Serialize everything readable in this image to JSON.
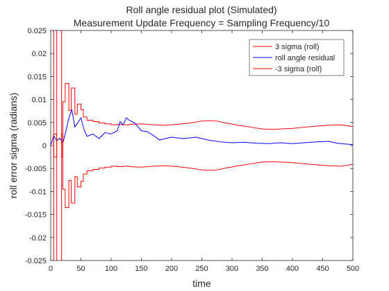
{
  "chart_data": {
    "type": "line",
    "title_lines": [
      "Roll angle residual plot (Simulated)",
      "Measurement Update Frequency = Sampling Frequency/10"
    ],
    "xlabel": "time",
    "ylabel": "roll error sigma (radians)",
    "xlim": [
      0,
      500
    ],
    "ylim": [
      -0.025,
      0.025
    ],
    "x_ticks": [
      0,
      50,
      100,
      150,
      200,
      250,
      300,
      350,
      400,
      450,
      500
    ],
    "x_tick_labels": [
      "0",
      "50",
      "100",
      "150",
      "200",
      "250",
      "300",
      "350",
      "400",
      "450",
      "500"
    ],
    "y_ticks": [
      -0.025,
      -0.02,
      -0.015,
      -0.01,
      -0.005,
      0,
      0.005,
      0.01,
      0.015,
      0.02,
      0.025
    ],
    "y_tick_labels": [
      "-0.025",
      "-0.02",
      "-0.015",
      "-0.01",
      "-0.005",
      "0",
      "0.005",
      "0.01",
      "0.015",
      "0.02",
      "0.025"
    ],
    "grid": false,
    "legend_position": "top-right",
    "series": [
      {
        "name": "3 sigma (roll)",
        "color": "#ff0000",
        "x": [
          0,
          1,
          2,
          5,
          5,
          10,
          10,
          11,
          12,
          18,
          18,
          20,
          20,
          24,
          24,
          30,
          30,
          34,
          34,
          40,
          40,
          44,
          44,
          50,
          50,
          54,
          54,
          60,
          60,
          70,
          70,
          80,
          80,
          90,
          90,
          100,
          100,
          110,
          110,
          120,
          120,
          130,
          130,
          150,
          170,
          190,
          210,
          230,
          250,
          260,
          275,
          290,
          310,
          330,
          350,
          370,
          380,
          400,
          420,
          440,
          460,
          480,
          490,
          500
        ],
        "y": [
          0.0262,
          0.0262,
          0.0262,
          0.0262,
          -0.0025,
          -0.0025,
          0.0262,
          0.0262,
          0.0262,
          0.0262,
          -0.0025,
          -0.0025,
          0.0095,
          0.0095,
          0.0135,
          0.0135,
          0.0076,
          0.0076,
          0.0125,
          0.0125,
          0.0068,
          0.0068,
          0.009,
          0.009,
          0.0078,
          0.0078,
          0.0062,
          0.0062,
          0.0055,
          0.0055,
          0.0052,
          0.0052,
          0.0049,
          0.0049,
          0.0047,
          0.0047,
          0.0045,
          0.0045,
          0.0046,
          0.0046,
          0.0045,
          0.0045,
          0.0046,
          0.0047,
          0.0045,
          0.0044,
          0.0046,
          0.0049,
          0.0053,
          0.0054,
          0.0053,
          0.0049,
          0.0044,
          0.004,
          0.0036,
          0.0035,
          0.0036,
          0.0037,
          0.004,
          0.0042,
          0.0044,
          0.0045,
          0.0043,
          0.0041
        ]
      },
      {
        "name": "roll angle residual",
        "color": "#0000ff",
        "x": [
          0,
          5,
          10,
          15,
          20,
          25,
          30,
          35,
          40,
          45,
          50,
          55,
          60,
          70,
          80,
          90,
          100,
          110,
          115,
          120,
          125,
          130,
          140,
          150,
          160,
          170,
          180,
          190,
          200,
          220,
          240,
          260,
          280,
          300,
          320,
          340,
          360,
          380,
          400,
          420,
          440,
          460,
          470,
          480,
          490,
          500
        ],
        "y": [
          0,
          0.0022,
          0.001,
          0.0016,
          0.0005,
          0.003,
          0.006,
          0.0077,
          0.004,
          0.005,
          0.006,
          0.0035,
          0.002,
          0.0025,
          0.0015,
          0.0028,
          0.0025,
          0.0032,
          0.0052,
          0.0045,
          0.006,
          0.0055,
          0.0048,
          0.0032,
          0.003,
          0.0022,
          0.0012,
          0.0015,
          0.0018,
          0.0015,
          0.0018,
          0.0012,
          0.0008,
          0.0006,
          0.0007,
          0.0005,
          0.0004,
          0.0006,
          0.0004,
          0.0006,
          0.0008,
          0.0009,
          0.0006,
          0.0004,
          0.0003,
          0.0002
        ]
      },
      {
        "name": "-3 sigma (roll)",
        "color": "#ff0000",
        "x": [
          0,
          1,
          2,
          5,
          5,
          10,
          10,
          11,
          12,
          18,
          18,
          20,
          20,
          24,
          24,
          30,
          30,
          34,
          34,
          40,
          40,
          44,
          44,
          50,
          50,
          54,
          54,
          60,
          60,
          70,
          70,
          80,
          80,
          90,
          90,
          100,
          100,
          110,
          110,
          120,
          120,
          130,
          130,
          150,
          170,
          190,
          210,
          230,
          250,
          260,
          275,
          290,
          310,
          330,
          350,
          370,
          380,
          400,
          420,
          440,
          460,
          480,
          490,
          500
        ],
        "y": [
          -0.0262,
          -0.0262,
          -0.0262,
          -0.0262,
          0.0025,
          0.0025,
          -0.0262,
          -0.0262,
          -0.0262,
          -0.0262,
          0.0025,
          0.0025,
          -0.0095,
          -0.0095,
          -0.0135,
          -0.0135,
          -0.0076,
          -0.0076,
          -0.0125,
          -0.0125,
          -0.0068,
          -0.0068,
          -0.009,
          -0.009,
          -0.0078,
          -0.0078,
          -0.0062,
          -0.0062,
          -0.0055,
          -0.0055,
          -0.0052,
          -0.0052,
          -0.0049,
          -0.0049,
          -0.0047,
          -0.0047,
          -0.0045,
          -0.0045,
          -0.0046,
          -0.0046,
          -0.0045,
          -0.0045,
          -0.0046,
          -0.0047,
          -0.0045,
          -0.0044,
          -0.0046,
          -0.0049,
          -0.0053,
          -0.0054,
          -0.0053,
          -0.0049,
          -0.0044,
          -0.004,
          -0.0036,
          -0.0035,
          -0.0036,
          -0.0037,
          -0.004,
          -0.0042,
          -0.0044,
          -0.0045,
          -0.0043,
          -0.0041
        ]
      }
    ]
  }
}
